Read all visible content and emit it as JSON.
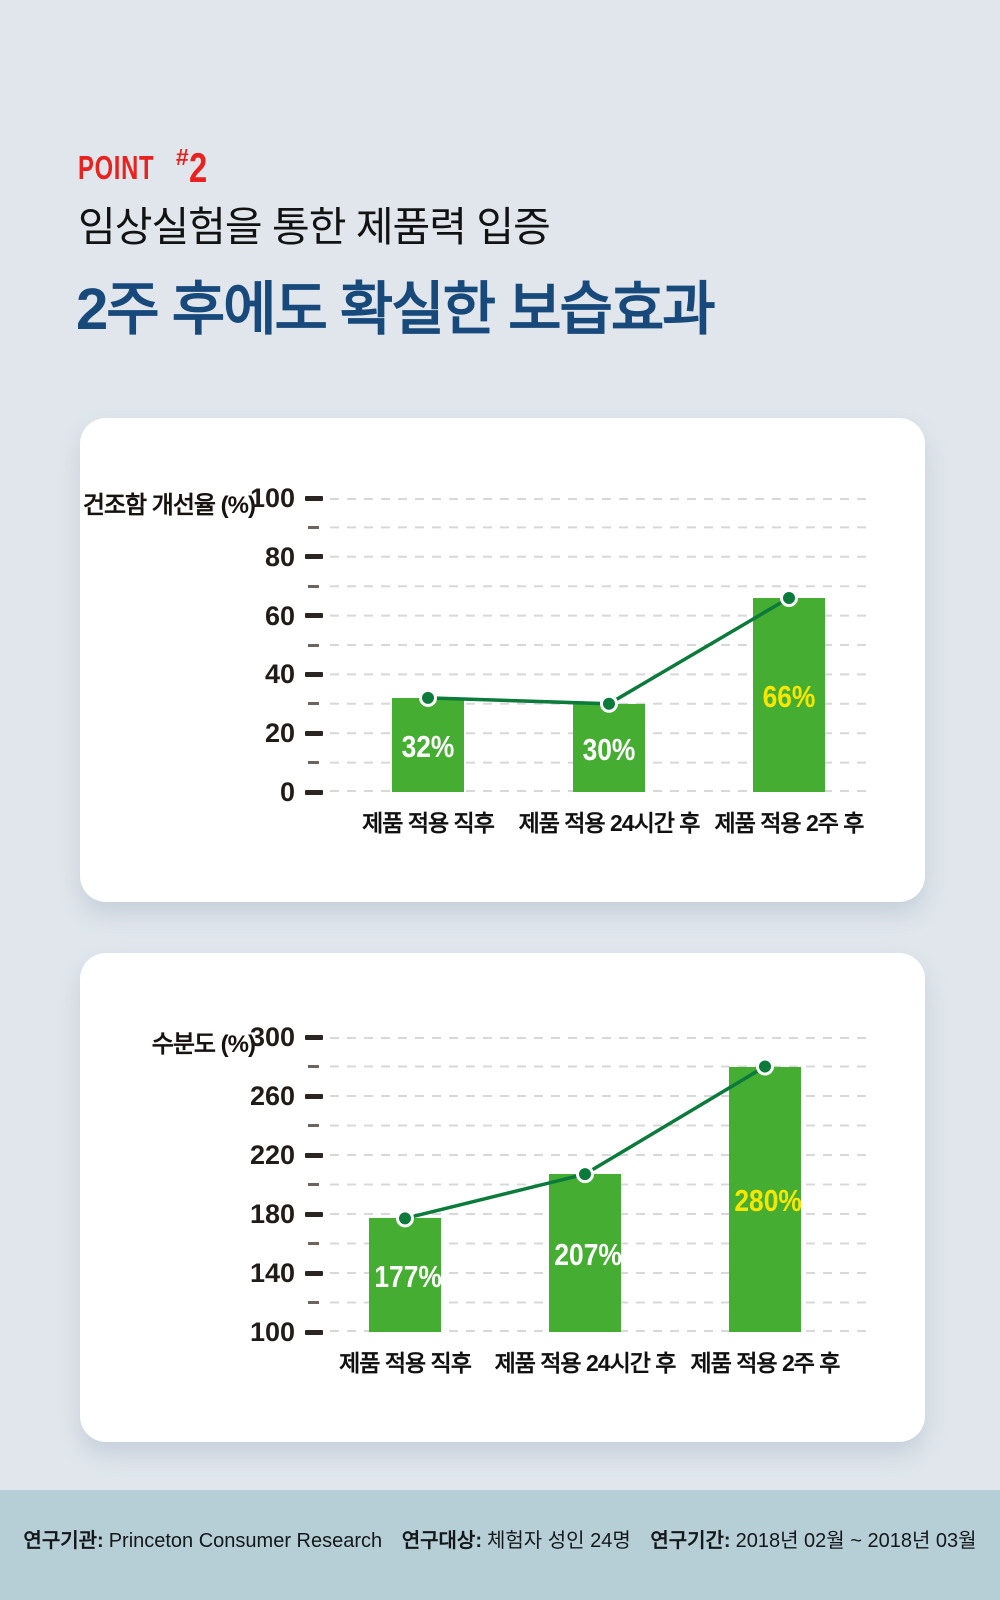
{
  "header": {
    "point_label": "POINT",
    "point_hash": "#",
    "point_number": "2",
    "subtitle": "임상실험을 통한 제품력 입증",
    "title": "2주 후에도 확실한 보습효과"
  },
  "colors": {
    "page_bg": "#e0e6ec",
    "footer_bg": "#b6ced6",
    "accent_red": "#e9211f",
    "title_navy": "#18497b",
    "bar_green": "#45ad31",
    "line_dark_green": "#0b7a3b",
    "value_label_white": "#ffffff",
    "value_label_yellow": "#f7e600",
    "gridline_gray": "#d8d8d8"
  },
  "chart_data": [
    {
      "type": "bar",
      "ylabel": "건조함 개선율 (%)",
      "categories": [
        "제품 적용 직후",
        "제품 적용 24시간 후",
        "제품 적용 2주 후"
      ],
      "values": [
        32,
        30,
        66
      ],
      "value_labels": [
        "32%",
        "30%",
        "66%"
      ],
      "value_label_colors": [
        "#ffffff",
        "#ffffff",
        "#f7e600"
      ],
      "series": [
        {
          "name": "건조함 개선율",
          "values": [
            32,
            30,
            66
          ]
        }
      ],
      "ylim": [
        0,
        100
      ],
      "yticks": [
        0,
        20,
        40,
        60,
        80,
        100
      ],
      "yticks_minor": [
        10,
        30,
        50,
        70,
        90
      ],
      "grid": "dashed horizontal",
      "legend": false,
      "overlay_line": true
    },
    {
      "type": "bar",
      "ylabel": "수분도 (%)",
      "categories": [
        "제품 적용 직후",
        "제품 적용 24시간 후",
        "제품 적용 2주 후"
      ],
      "values": [
        177,
        207,
        280
      ],
      "value_labels": [
        "177%",
        "207%",
        "280%"
      ],
      "value_label_colors": [
        "#ffffff",
        "#ffffff",
        "#f7e600"
      ],
      "series": [
        {
          "name": "수분도",
          "values": [
            177,
            207,
            280
          ]
        }
      ],
      "ylim": [
        100,
        300
      ],
      "yticks": [
        100,
        140,
        180,
        220,
        260,
        300
      ],
      "yticks_minor": [
        120,
        160,
        200,
        240,
        280
      ],
      "grid": "dashed horizontal",
      "legend": false,
      "overlay_line": true
    }
  ],
  "footer": {
    "items": [
      {
        "label": "연구기관:",
        "value": "Princeton Consumer Research"
      },
      {
        "label": "연구대상:",
        "value": "체험자 성인 24명"
      },
      {
        "label": "연구기간:",
        "value": "2018년 02월 ~ 2018년 03월"
      }
    ]
  }
}
